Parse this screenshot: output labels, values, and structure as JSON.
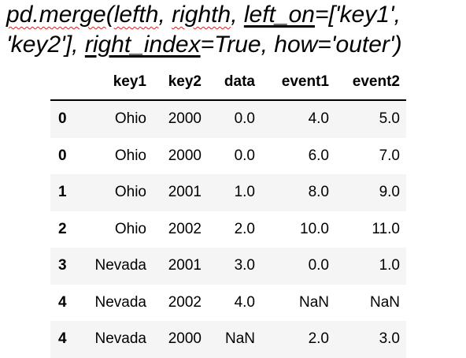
{
  "code": {
    "line1": {
      "a": "pd.merge",
      "b": "(",
      "c": "lefth",
      "d": ", ",
      "e": "righth",
      "f": ", ",
      "g": "left_on",
      "h": "=['key1',"
    },
    "line2": {
      "a": "'key2'], ",
      "b": "right_index",
      "c": "=True, how='outer')"
    }
  },
  "table": {
    "columns": [
      "",
      "key1",
      "key2",
      "data",
      "event1",
      "event2"
    ],
    "rows": [
      {
        "index": "0",
        "key1": "Ohio",
        "key2": "2000",
        "data": "0.0",
        "event1": "4.0",
        "event2": "5.0"
      },
      {
        "index": "0",
        "key1": "Ohio",
        "key2": "2000",
        "data": "0.0",
        "event1": "6.0",
        "event2": "7.0"
      },
      {
        "index": "1",
        "key1": "Ohio",
        "key2": "2001",
        "data": "1.0",
        "event1": "8.0",
        "event2": "9.0"
      },
      {
        "index": "2",
        "key1": "Ohio",
        "key2": "2002",
        "data": "2.0",
        "event1": "10.0",
        "event2": "11.0"
      },
      {
        "index": "3",
        "key1": "Nevada",
        "key2": "2001",
        "data": "3.0",
        "event1": "0.0",
        "event2": "1.0"
      },
      {
        "index": "4",
        "key1": "Nevada",
        "key2": "2002",
        "data": "4.0",
        "event1": "NaN",
        "event2": "NaN"
      },
      {
        "index": "4",
        "key1": "Nevada",
        "key2": "2000",
        "data": "NaN",
        "event1": "2.0",
        "event2": "3.0"
      }
    ]
  },
  "colors": {
    "spellcheck_underline": "#d22020",
    "stripe": "#f5f5f5",
    "text": "#000000"
  }
}
